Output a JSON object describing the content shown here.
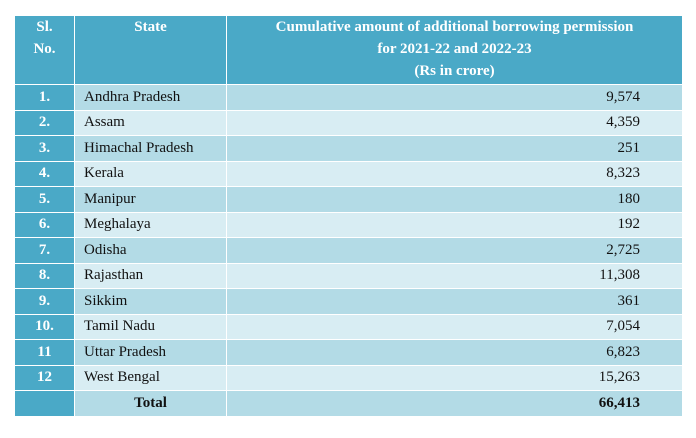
{
  "header": {
    "sl": "Sl. No.",
    "state": "State",
    "amount_line1": "Cumulative amount of additional borrowing permission",
    "amount_line2": "for 2021-22 and 2022-23",
    "amount_line3": "(Rs in crore)"
  },
  "rows": [
    {
      "sl": "1.",
      "state": "Andhra Pradesh",
      "amount": "9,574"
    },
    {
      "sl": "2.",
      "state": "Assam",
      "amount": "4,359"
    },
    {
      "sl": "3.",
      "state": "Himachal Pradesh",
      "amount": "251"
    },
    {
      "sl": "4.",
      "state": "Kerala",
      "amount": "8,323"
    },
    {
      "sl": "5.",
      "state": "Manipur",
      "amount": "180"
    },
    {
      "sl": "6.",
      "state": "Meghalaya",
      "amount": "192"
    },
    {
      "sl": "7.",
      "state": "Odisha",
      "amount": "2,725"
    },
    {
      "sl": "8.",
      "state": "Rajasthan",
      "amount": "11,308"
    },
    {
      "sl": "9.",
      "state": "Sikkim",
      "amount": "361"
    },
    {
      "sl": "10.",
      "state": "Tamil Nadu",
      "amount": "7,054"
    },
    {
      "sl": "11",
      "state": "Uttar Pradesh",
      "amount": "6,823"
    },
    {
      "sl": "12",
      "state": "West Bengal",
      "amount": "15,263"
    }
  ],
  "total": {
    "label": "Total",
    "amount": "66,413"
  }
}
